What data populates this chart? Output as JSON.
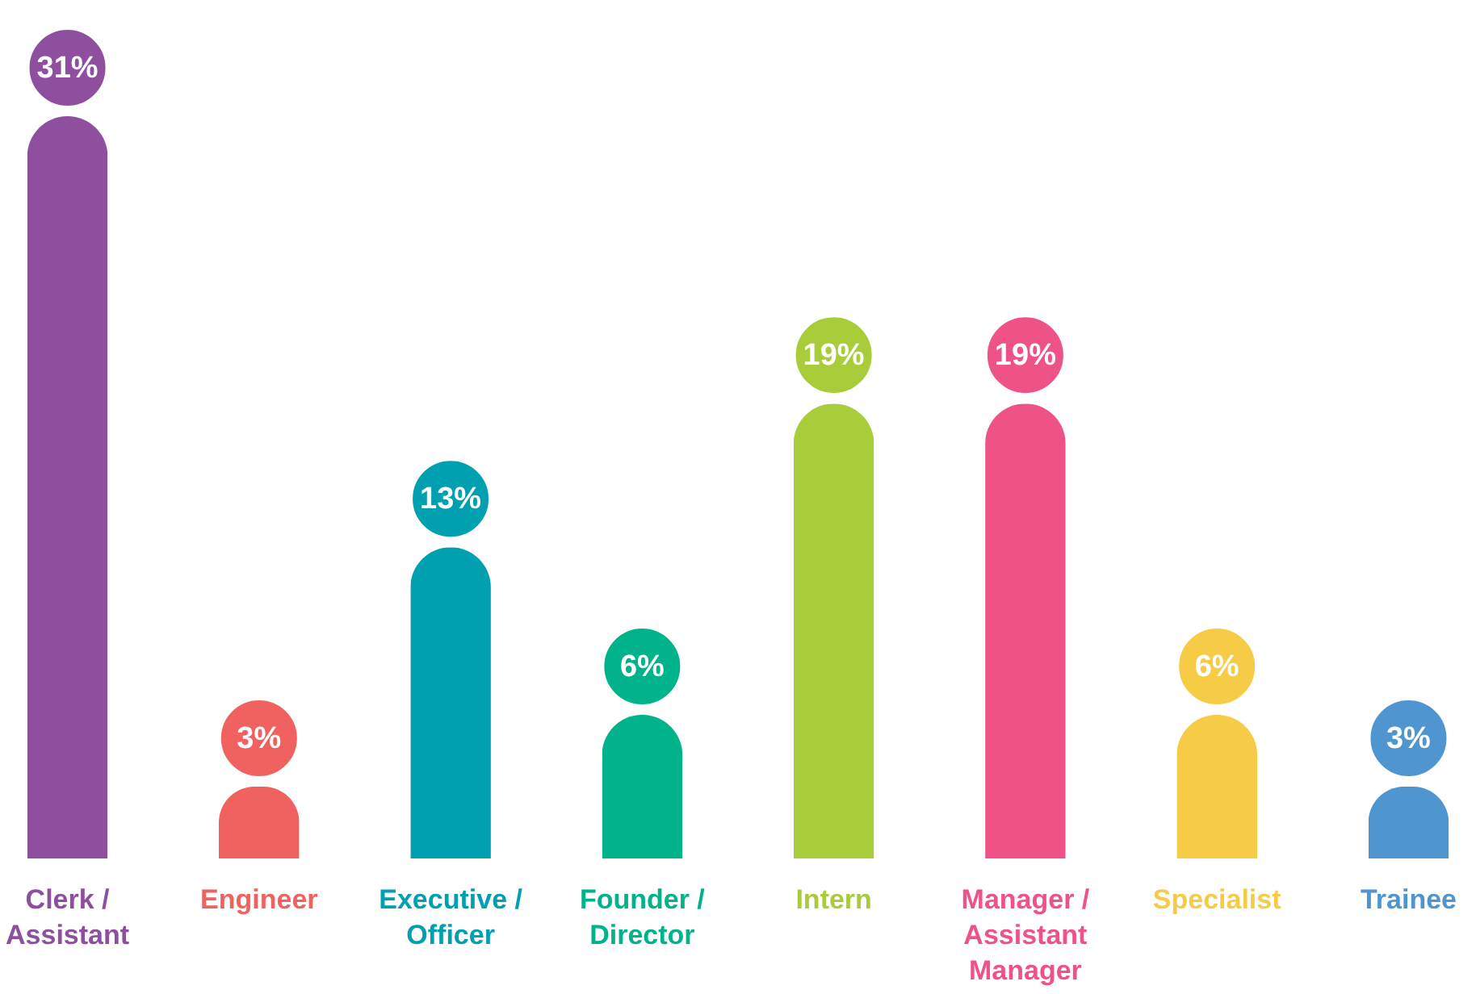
{
  "chart_data": {
    "type": "bar",
    "categories": [
      "Clerk / Assistant",
      "Engineer",
      "Executive / Officer",
      "Founder / Director",
      "Intern",
      "Manager / Assistant Manager",
      "Specialist",
      "Trainee"
    ],
    "values": [
      31,
      3,
      13,
      6,
      19,
      19,
      6,
      3
    ],
    "value_labels": [
      "31%",
      "3%",
      "13%",
      "6%",
      "19%",
      "19%",
      "6%",
      "3%"
    ],
    "colors": [
      "#8e4f9e",
      "#f0625f",
      "#00a0b0",
      "#00b38a",
      "#a8cc3a",
      "#ef5285",
      "#f6cb45",
      "#4f95d0"
    ]
  }
}
